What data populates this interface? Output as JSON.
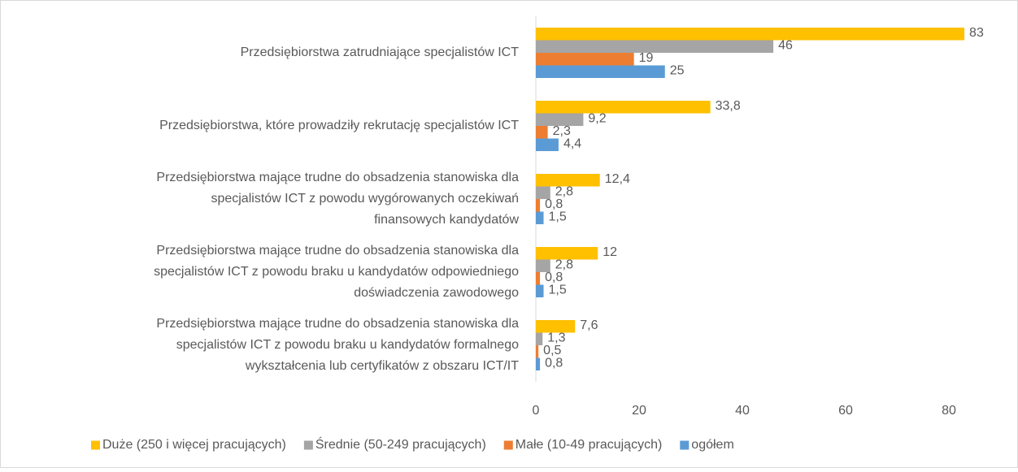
{
  "chart_data": {
    "type": "barh",
    "categories": [
      [
        "Przedsiębiorstwa zatrudniające specjalistów ICT"
      ],
      [
        "Przedsiębiorstwa, które prowadziły rekrutację specjalistów ICT"
      ],
      [
        "Przedsiębiorstwa mające trudne do obsadzenia stanowiska dla",
        "specjalistów ICT z powodu wygórowanych oczekiwań",
        "finansowych kandydatów"
      ],
      [
        "Przedsiębiorstwa mające trudne do obsadzenia stanowiska dla",
        "specjalistów ICT z powodu braku u kandydatów odpowiedniego",
        "doświadczenia zawodowego"
      ],
      [
        "Przedsiębiorstwa mające trudne do obsadzenia stanowiska dla",
        "specjalistów ICT z powodu braku u kandydatów formalnego",
        "wykształcenia lub certyfikatów z obszaru ICT/IT"
      ]
    ],
    "series": [
      {
        "name": "Duże (250 i więcej pracujących)",
        "color": "#FFC000",
        "values": [
          83,
          33.8,
          12.4,
          12,
          7.6
        ],
        "value_labels": [
          "83",
          "33,8",
          "12,4",
          "12",
          "7,6"
        ]
      },
      {
        "name": "Średnie (50-249 pracujących)",
        "color": "#A5A5A5",
        "values": [
          46,
          9.2,
          2.8,
          2.8,
          1.3
        ],
        "value_labels": [
          "46",
          "9,2",
          "2,8",
          "2,8",
          "1,3"
        ]
      },
      {
        "name": "Małe (10-49 pracujących)",
        "color": "#ED7D31",
        "values": [
          19,
          2.3,
          0.8,
          0.8,
          0.5
        ],
        "value_labels": [
          "19",
          "2,3",
          "0,8",
          "0,8",
          "0,5"
        ]
      },
      {
        "name": "ogółem",
        "color": "#5B9BD5",
        "values": [
          25,
          4.4,
          1.5,
          1.5,
          0.8
        ],
        "value_labels": [
          "25",
          "4,4",
          "1,5",
          "1,5",
          "0,8"
        ]
      }
    ],
    "xlim": [
      0,
      85
    ],
    "xticks": [
      0,
      20,
      40,
      60,
      80
    ],
    "grid": false,
    "legend": "bottom"
  }
}
